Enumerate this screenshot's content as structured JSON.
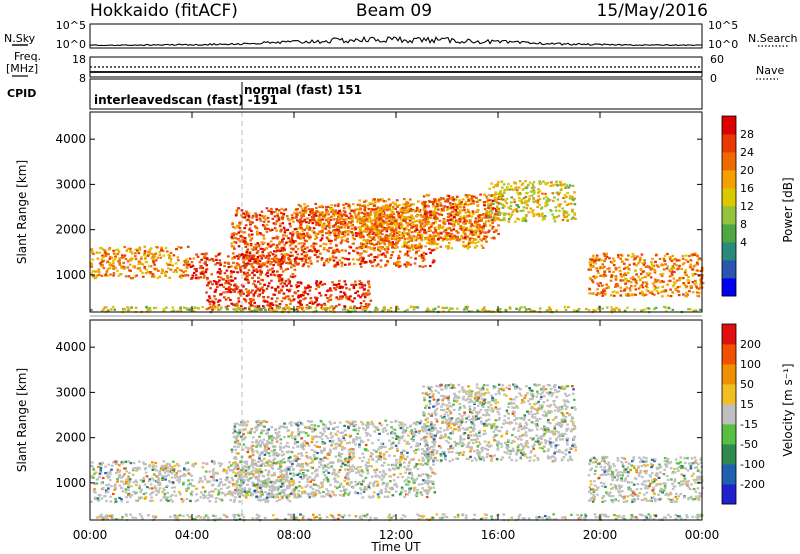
{
  "header": {
    "station": "Hokkaido (fitACF)",
    "beam": "Beam 09",
    "date": "15/May/2016"
  },
  "top_panels": {
    "nsky_label": "N.Sky",
    "nsearch_label": "N.Search",
    "freq_label_line1": "Freq.",
    "freq_label_line2": "[MHz]",
    "nave_label": "Nave",
    "cpid_label": "CPID",
    "nsky_left_ticks": [
      "10^5",
      "10^0"
    ],
    "nsky_right_ticks": [
      "10^5",
      "10^0"
    ],
    "freq_ticks": [
      "18",
      "8"
    ],
    "nave_ticks": [
      "60",
      "0"
    ],
    "cpid_entries": [
      {
        "text": "interleavedscan (fast) -191",
        "start_hour": 0
      },
      {
        "text": "normal (fast) 151",
        "start_hour": 6
      }
    ]
  },
  "chart_data": [
    {
      "type": "heatmap",
      "title": "",
      "xlabel": "Time UT",
      "ylabel": "Slant Range [km]",
      "x_ticks": [
        "00:00",
        "04:00",
        "08:00",
        "12:00",
        "16:00",
        "20:00",
        "00:00"
      ],
      "xlim_hours": [
        0,
        24
      ],
      "y_ticks": [
        1000,
        2000,
        3000,
        4000
      ],
      "ylim": [
        180,
        4600
      ],
      "colorbar": {
        "label": "Power [dB]",
        "ticks": [
          "28",
          "24",
          "20",
          "16",
          "12",
          "8",
          "4"
        ],
        "colors": [
          "#0000ee",
          "#2c55b0",
          "#2a8a7a",
          "#4da843",
          "#93c33c",
          "#dcc800",
          "#f5a000",
          "#ee6a00",
          "#e83a00",
          "#dd0000"
        ]
      },
      "echo_regions": [
        {
          "t0": 0.0,
          "t1": 3.8,
          "r0": 950,
          "r1": 1650,
          "level": 0.72
        },
        {
          "t0": 3.8,
          "t1": 8.0,
          "r0": 900,
          "r1": 1500,
          "level": 0.9
        },
        {
          "t0": 5.5,
          "t1": 13.5,
          "r0": 1200,
          "r1": 2500,
          "level": 0.85
        },
        {
          "t0": 8.0,
          "t1": 12.0,
          "r0": 1800,
          "r1": 2600,
          "level": 0.75
        },
        {
          "t0": 10.5,
          "t1": 15.5,
          "r0": 1600,
          "r1": 2700,
          "level": 0.7
        },
        {
          "t0": 4.5,
          "t1": 11.0,
          "r0": 250,
          "r1": 900,
          "level": 0.92
        },
        {
          "t0": 13.0,
          "t1": 16.0,
          "r0": 1800,
          "r1": 2800,
          "level": 0.8
        },
        {
          "t0": 15.5,
          "t1": 19.0,
          "r0": 2200,
          "r1": 3100,
          "level": 0.55
        },
        {
          "t0": 19.5,
          "t1": 24.0,
          "r0": 550,
          "r1": 1500,
          "level": 0.75
        },
        {
          "t0": 0.0,
          "t1": 24.0,
          "r0": 200,
          "r1": 320,
          "level": 0.5
        }
      ]
    },
    {
      "type": "heatmap",
      "title": "",
      "xlabel": "Time UT",
      "ylabel": "Slant Range [km]",
      "x_ticks": [
        "00:00",
        "04:00",
        "08:00",
        "12:00",
        "16:00",
        "20:00",
        "00:00"
      ],
      "xlim_hours": [
        0,
        24
      ],
      "y_ticks": [
        1000,
        2000,
        3000,
        4000
      ],
      "ylim": [
        180,
        4600
      ],
      "colorbar": {
        "label": "Velocity [m s⁻¹]",
        "ticks": [
          "200",
          "100",
          "50",
          "15",
          "-15",
          "-50",
          "-100",
          "-200"
        ],
        "colors": [
          "#2020cc",
          "#2060b0",
          "#308a50",
          "#58c040",
          "#bfbfbf",
          "#f0c020",
          "#f09000",
          "#f05000",
          "#e01010"
        ]
      },
      "echo_regions": [
        {
          "t0": 0.0,
          "t1": 8.0,
          "r0": 600,
          "r1": 1500,
          "level": 0.5
        },
        {
          "t0": 5.5,
          "t1": 13.5,
          "r0": 700,
          "r1": 2400,
          "level": 0.5
        },
        {
          "t0": 13.0,
          "t1": 19.0,
          "r0": 1500,
          "r1": 3200,
          "level": 0.5
        },
        {
          "t0": 19.5,
          "t1": 24.0,
          "r0": 600,
          "r1": 1600,
          "level": 0.5
        },
        {
          "t0": 0.0,
          "t1": 24.0,
          "r0": 200,
          "r1": 330,
          "level": 0.62
        }
      ]
    }
  ],
  "colors": {
    "frame": "#000000",
    "separator": "#999999"
  }
}
